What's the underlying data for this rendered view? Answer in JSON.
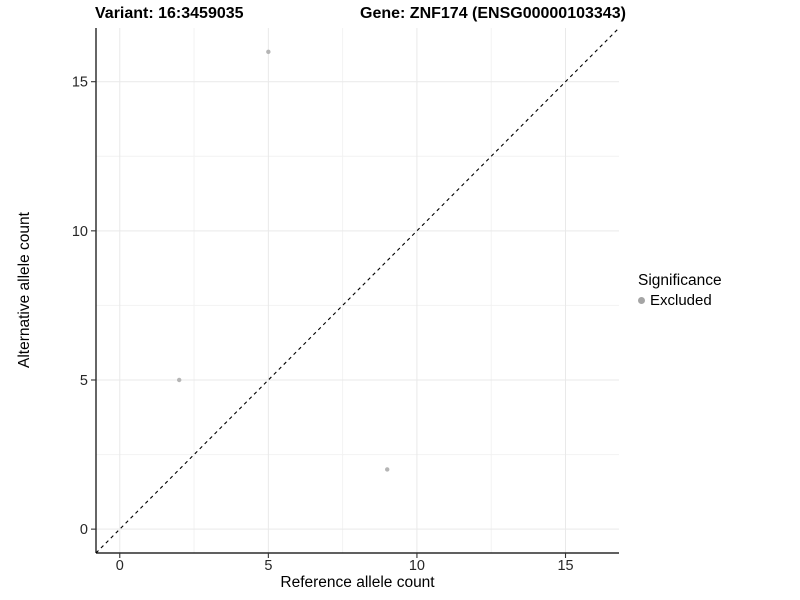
{
  "title": {
    "variant": "Variant: 16:3459035",
    "gene": "Gene: ZNF174 (ENSG00000103343)"
  },
  "axes": {
    "x_label": "Reference allele count",
    "y_label": "Alternative allele count"
  },
  "legend": {
    "title": "Significance",
    "items": [
      {
        "label": "Excluded",
        "color": "#a5a5a5"
      }
    ]
  },
  "chart_data": {
    "type": "scatter",
    "title": "Variant: 16:3459035    Gene: ZNF174 (ENSG00000103343)",
    "xlabel": "Reference allele count",
    "ylabel": "Alternative allele count",
    "series": [
      {
        "name": "Excluded",
        "color": "#b5b5b5",
        "points": [
          {
            "x": 5,
            "y": 16
          },
          {
            "x": 2,
            "y": 5
          },
          {
            "x": 9,
            "y": 2
          }
        ]
      }
    ],
    "xlim": [
      -0.8,
      16.8
    ],
    "ylim": [
      -0.8,
      16.8
    ],
    "x_ticks": [
      0,
      5,
      10,
      15
    ],
    "y_ticks": [
      0,
      5,
      10,
      15
    ],
    "x_minor_ticks": [
      2.5,
      7.5,
      12.5
    ],
    "y_minor_ticks": [
      2.5,
      7.5,
      12.5
    ],
    "reference_line": {
      "type": "identity",
      "style": "dashed",
      "color": "#000000"
    },
    "grid": true,
    "legend_position": "right",
    "style": {
      "grid_major_color": "#e9e9e9",
      "grid_minor_color": "#f2f2f2",
      "axis_line_color": "#000000",
      "tick_color": "#333333",
      "tick_label_color": "#262626",
      "point_radius": 2.2,
      "background": "#ffffff"
    }
  }
}
